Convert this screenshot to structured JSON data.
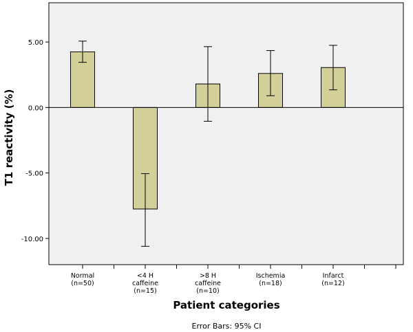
{
  "chart_data": {
    "type": "bar",
    "title": "",
    "xlabel": "Patient categories",
    "ylabel": "T1 reactivity (%)",
    "footnote": "Error Bars: 95% CI",
    "categories": [
      [
        "Normal",
        "(n=50)"
      ],
      [
        "<4 H",
        "caffeine",
        "(n=15)"
      ],
      [
        ">8 H",
        "caffeine",
        "(n=10)"
      ],
      [
        "Ischemia",
        "(n=18)"
      ],
      [
        "Infarct",
        "(n=12)"
      ]
    ],
    "values": [
      4.25,
      -7.75,
      1.8,
      2.6,
      3.05
    ],
    "error_low": [
      3.45,
      -10.6,
      -1.05,
      0.9,
      1.35
    ],
    "error_high": [
      5.07,
      -5.05,
      4.65,
      4.35,
      4.75
    ],
    "ylim": [
      -12.0,
      8.0
    ],
    "yticks": [
      5.0,
      0.0,
      -5.0,
      -10.0
    ],
    "ytick_labels": [
      "5.00",
      "0.00",
      "-5.00",
      "-10.00"
    ],
    "grid": false,
    "colors": {
      "bar": "#d3cf98",
      "plot_bg": "#f0f0f0",
      "line": "#000000"
    }
  }
}
